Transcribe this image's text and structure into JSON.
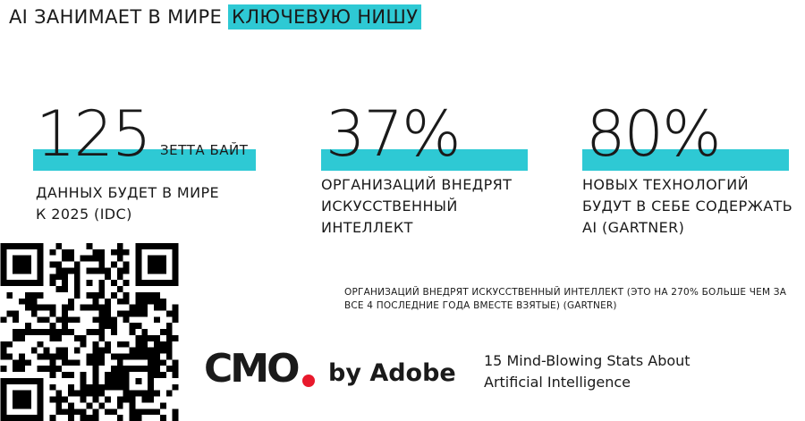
{
  "title": {
    "prefix": "AI ЗАНИМАЕТ В МИРЕ ",
    "highlight": "КЛЮЧЕВУЮ НИШУ"
  },
  "stats": [
    {
      "number": "125",
      "unit": "ЗЕТТА БАЙТ",
      "description_lines": [
        "ДАННЫХ БУДЕТ В МИРЕ",
        "К 2025 (IDC)"
      ]
    },
    {
      "number": "37%",
      "unit": "",
      "description_lines": [
        "ОРГАНИЗАЦИЙ ВНЕДРЯТ",
        "ИСКУССТВЕННЫЙ",
        "ИНТЕЛЛЕКТ"
      ]
    },
    {
      "number": "80%",
      "unit": "",
      "description_lines": [
        "НОВЫХ ТЕХНОЛОГИЙ",
        "БУДУТ В СЕБЕ СОДЕРЖАТЬ",
        "AI (GARTNER)"
      ]
    }
  ],
  "note": {
    "line1": "ОРГАНИЗАЦИЙ ВНЕДРЯТ ИСКУССТВЕННЫЙ ИНТЕЛЛЕКТ (ЭТО НА 270% БОЛЬШЕ ЧЕМ ЗА",
    "line2": "ВСЕ 4 ПОСЛЕДНИЕ ГОДА ВМЕСТЕ ВЗЯТЫЕ) (GARTNER)"
  },
  "logo": {
    "brand": "CMO",
    "suffix": "by Adobe"
  },
  "source": {
    "line1": "15 Mind-Blowing Stats About",
    "line2": "Artificial Intelligence"
  },
  "colors": {
    "accent": "#2ec9d4",
    "logo_dot": "#e8192c",
    "text": "#1a1a1a"
  },
  "icons": {
    "qr": "qr-code-icon"
  }
}
